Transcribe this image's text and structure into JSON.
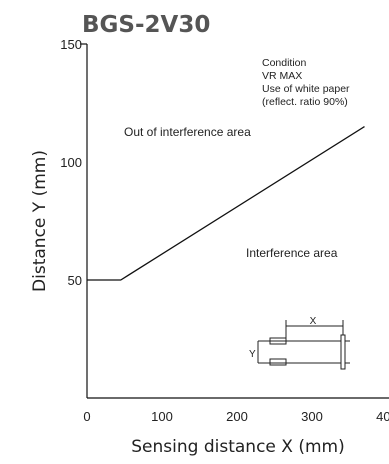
{
  "chart_data": {
    "type": "line",
    "title": "BGS-2V30",
    "xlabel": "Sensing distance X (mm)",
    "ylabel": "Distance Y (mm)",
    "xlim": [
      0,
      400
    ],
    "ylim": [
      0,
      150
    ],
    "x_ticks": [
      "0",
      "100",
      "200",
      "300",
      "400"
    ],
    "y_ticks": [
      "50",
      "100",
      "150"
    ],
    "series": [
      {
        "x": [
          0,
          45,
          370
        ],
        "y": [
          50,
          50,
          115
        ]
      }
    ],
    "annotations": {
      "condition_lines": [
        "Condition",
        "VR MAX",
        "Use of white paper",
        "(reflect. ratio 90%)"
      ],
      "out_area": "Out of interference area",
      "in_area": "Interference area",
      "diagram_x": "X",
      "diagram_y": "Y"
    },
    "grid": false
  }
}
